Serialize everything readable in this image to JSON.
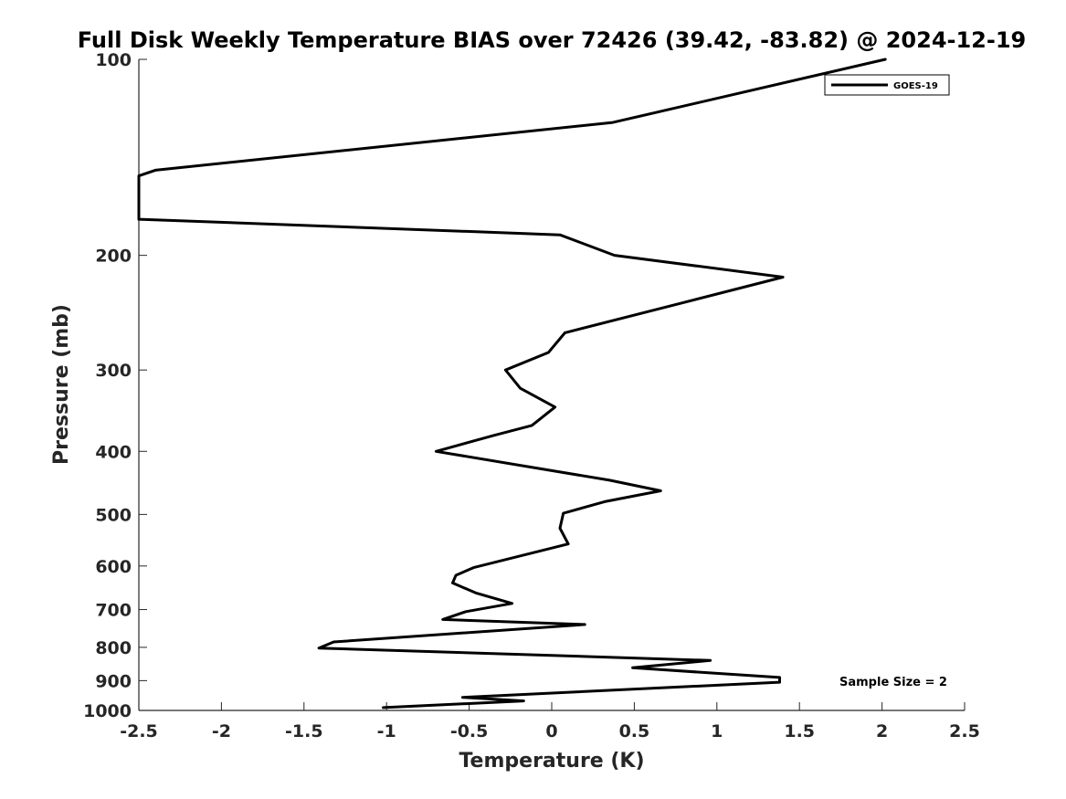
{
  "chart_data": {
    "type": "line",
    "title": "Full Disk Weekly Temperature BIAS over 72426 (39.42, -83.82) @ 2024-12-19",
    "xlabel": "Temperature (K)",
    "ylabel": "Pressure (mb)",
    "xlim": [
      -2.5,
      2.5
    ],
    "ylim": [
      100,
      1000
    ],
    "yscale": "log",
    "yreversed": true,
    "x_ticks": [
      -2.5,
      -2,
      -1.5,
      -1,
      -0.5,
      0,
      0.5,
      1,
      1.5,
      2,
      2.5
    ],
    "x_tick_labels": [
      "-2.5",
      "-2",
      "-1.5",
      "-1",
      "-0.5",
      "0",
      "0.5",
      "1",
      "1.5",
      "2",
      "2.5"
    ],
    "y_ticks": [
      100,
      200,
      300,
      400,
      500,
      600,
      700,
      800,
      900,
      1000
    ],
    "y_tick_labels": [
      "100",
      "200",
      "300",
      "400",
      "500",
      "600",
      "700",
      "800",
      "900",
      "1000"
    ],
    "grid": false,
    "legend_position": "top-right",
    "annotation": "Sample Size = 2",
    "series": [
      {
        "name": "GOES-19",
        "color": "#000000",
        "points": [
          [
            2.02,
            100
          ],
          [
            0.37,
            125
          ],
          [
            -2.4,
            148
          ],
          [
            -2.5,
            151
          ],
          [
            -2.5,
            176
          ],
          [
            0.05,
            186
          ],
          [
            0.38,
            200
          ],
          [
            1.4,
            216
          ],
          [
            0.78,
            237
          ],
          [
            0.08,
            263
          ],
          [
            -0.02,
            282
          ],
          [
            -0.28,
            300
          ],
          [
            -0.19,
            320
          ],
          [
            0.02,
            342
          ],
          [
            -0.12,
            365
          ],
          [
            -0.35,
            378
          ],
          [
            -0.7,
            400
          ],
          [
            0.35,
            443
          ],
          [
            0.66,
            460
          ],
          [
            0.32,
            478
          ],
          [
            0.07,
            498
          ],
          [
            0.05,
            525
          ],
          [
            0.1,
            555
          ],
          [
            -0.47,
            603
          ],
          [
            -0.58,
            620
          ],
          [
            -0.6,
            637
          ],
          [
            -0.46,
            660
          ],
          [
            -0.24,
            685
          ],
          [
            -0.52,
            705
          ],
          [
            -0.66,
            725
          ],
          [
            0.2,
            738
          ],
          [
            -1.32,
            785
          ],
          [
            -1.41,
            802
          ],
          [
            0.96,
            838
          ],
          [
            0.49,
            860
          ],
          [
            1.38,
            890
          ],
          [
            1.38,
            905
          ],
          [
            -0.54,
            955
          ],
          [
            -0.17,
            967
          ],
          [
            -1.02,
            990
          ]
        ]
      }
    ]
  }
}
